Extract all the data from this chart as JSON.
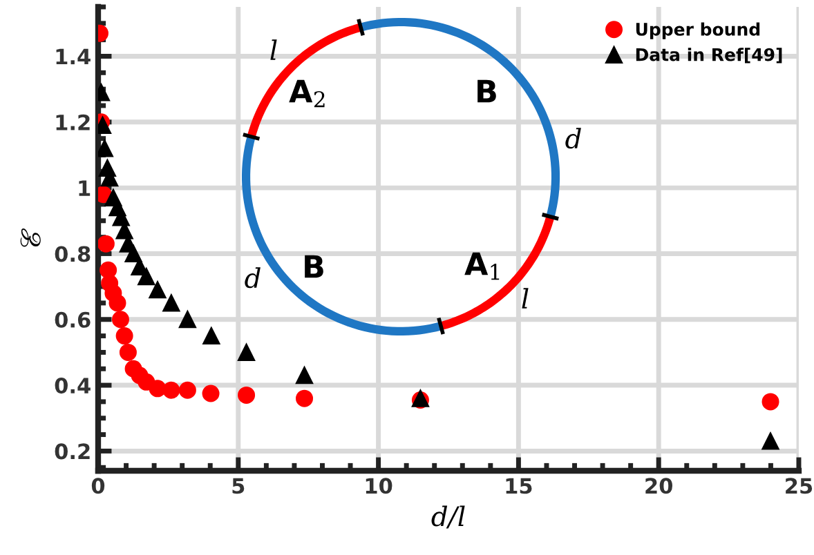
{
  "chart_data": {
    "type": "scatter",
    "xlabel": "d/l",
    "ylabel": "ℰ",
    "xlim": [
      0,
      25
    ],
    "ylim": [
      0.14,
      1.55
    ],
    "xticks": [
      0,
      5,
      10,
      15,
      20,
      25
    ],
    "yticks": [
      0.2,
      0.4,
      0.6,
      0.8,
      {
        "value": 1.0,
        "label": "1"
      },
      1.2,
      1.4
    ],
    "grid": true,
    "legend": "top right",
    "series": [
      {
        "name": "Upper bound",
        "color": "#ff0000",
        "marker": "circle",
        "x": [
          0.06,
          0.11,
          0.18,
          0.28,
          0.36,
          0.41,
          0.54,
          0.69,
          0.8,
          0.94,
          1.07,
          1.26,
          1.48,
          1.72,
          2.12,
          2.61,
          3.19,
          4.02,
          5.29,
          7.36,
          11.5,
          23.99
        ],
        "values": [
          1.47,
          1.2,
          0.98,
          0.83,
          0.75,
          0.71,
          0.68,
          0.65,
          0.6,
          0.55,
          0.5,
          0.45,
          0.43,
          0.41,
          0.39,
          0.385,
          0.385,
          0.375,
          0.37,
          0.36,
          0.355,
          0.35
        ]
      },
      {
        "name": "Data in Ref[49]",
        "color": "#000000",
        "marker": "triangle",
        "x": [
          0.11,
          0.16,
          0.23,
          0.33,
          0.41,
          0.54,
          0.69,
          0.82,
          0.94,
          1.07,
          1.26,
          1.48,
          1.72,
          2.12,
          2.61,
          3.19,
          4.04,
          5.29,
          7.36,
          11.5,
          23.99
        ],
        "values": [
          1.29,
          1.19,
          1.12,
          1.06,
          1.03,
          0.97,
          0.94,
          0.91,
          0.87,
          0.83,
          0.8,
          0.76,
          0.73,
          0.69,
          0.65,
          0.6,
          0.55,
          0.5,
          0.43,
          0.36,
          0.23
        ]
      }
    ],
    "annotations": [
      "l",
      "A$_{2}$",
      "B",
      "d",
      "B",
      "d",
      "A$_{1}$",
      "l"
    ]
  }
}
